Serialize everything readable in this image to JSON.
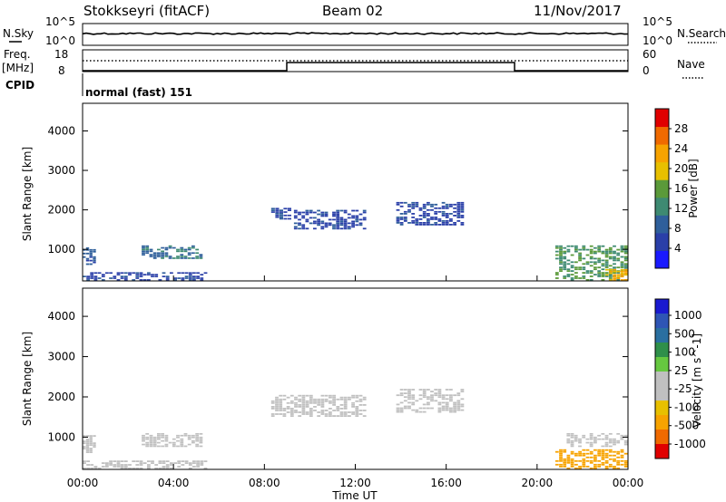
{
  "header": {
    "station": "Stokkseyri (fitACF)",
    "beam": "Beam 02",
    "date": "11/Nov/2017"
  },
  "noise_panel": {
    "left_label": "N.Sky",
    "right_label": "N.Search",
    "left_ticks": [
      "10^5",
      "10^0"
    ],
    "right_ticks": [
      "10^5",
      "10^0"
    ]
  },
  "freq_panel": {
    "left_label_line1": "Freq.",
    "left_label_line2": "[MHz]",
    "left_label_line3": "CPID",
    "left_ticks": [
      "18",
      "8"
    ],
    "right_label": "Nave",
    "right_ticks": [
      "60",
      "0"
    ],
    "cpid_text": "normal (fast) 151"
  },
  "colors": {
    "power": [
      "#1a1aff",
      "#2a3fa8",
      "#2f5f9b",
      "#3e8a72",
      "#5b9a3a",
      "#e8c000",
      "#f7a300",
      "#f06a00",
      "#e00000"
    ],
    "velocity": [
      "#e00000",
      "#f06a00",
      "#f7a300",
      "#e8c000",
      "#c0c0c0",
      "#c0c0c0",
      "#66c840",
      "#2f8f4a",
      "#2a6fa0",
      "#2e55b5",
      "#1a1ad0"
    ]
  },
  "chart_data": [
    {
      "type": "heatmap",
      "name": "power",
      "xlabel": "",
      "ylabel": "Slant Range [km]",
      "yticks": [
        "1000",
        "2000",
        "3000",
        "4000"
      ],
      "ylim": [
        200,
        4700
      ],
      "xlim": [
        0,
        24
      ],
      "colorbar_label": "Power [dB]",
      "colorbar_ticks": [
        "4",
        "8",
        "12",
        "16",
        "20",
        "24",
        "28"
      ],
      "color_range": [
        0,
        32
      ],
      "regions": [
        {
          "t0": 0.0,
          "t1": 0.6,
          "r0": 600,
          "r1": 1050,
          "v": 8
        },
        {
          "t0": 0.0,
          "t1": 5.5,
          "r0": 200,
          "r1": 420,
          "v": 6
        },
        {
          "t0": 2.6,
          "t1": 5.3,
          "r0": 750,
          "r1": 1100,
          "v": 10
        },
        {
          "t0": 8.3,
          "t1": 9.2,
          "r0": 1750,
          "r1": 2050,
          "v": 7
        },
        {
          "t0": 9.3,
          "t1": 12.5,
          "r0": 1500,
          "r1": 2000,
          "v": 6
        },
        {
          "t0": 13.8,
          "t1": 16.8,
          "r0": 1600,
          "r1": 2200,
          "v": 6
        },
        {
          "t0": 20.8,
          "t1": 24.0,
          "r0": 200,
          "r1": 1100,
          "v": 14
        },
        {
          "t0": 23.0,
          "t1": 24.0,
          "r0": 200,
          "r1": 500,
          "v": 22
        }
      ]
    },
    {
      "type": "heatmap",
      "name": "velocity",
      "xlabel": "Time UT",
      "ylabel": "Slant Range [km]",
      "xticks": [
        "00:00",
        "04:00",
        "08:00",
        "12:00",
        "16:00",
        "20:00",
        "00:00"
      ],
      "yticks": [
        "1000",
        "2000",
        "3000",
        "4000"
      ],
      "ylim": [
        200,
        4700
      ],
      "xlim": [
        0,
        24
      ],
      "colorbar_label": "Velocity [m s^-1]",
      "colorbar_ticks": [
        "1000",
        "500",
        "100",
        "25",
        "-25",
        "-100",
        "-500",
        "-1000"
      ],
      "regions": [
        {
          "t0": 0.0,
          "t1": 0.6,
          "r0": 600,
          "r1": 1050,
          "v": 0
        },
        {
          "t0": 0.0,
          "t1": 5.5,
          "r0": 200,
          "r1": 420,
          "v": 10
        },
        {
          "t0": 2.6,
          "t1": 5.3,
          "r0": 750,
          "r1": 1100,
          "v": 0
        },
        {
          "t0": 8.3,
          "t1": 12.5,
          "r0": 1500,
          "r1": 2050,
          "v": 0
        },
        {
          "t0": 13.8,
          "t1": 16.8,
          "r0": 1600,
          "r1": 2200,
          "v": 0
        },
        {
          "t0": 20.8,
          "t1": 24.0,
          "r0": 200,
          "r1": 700,
          "v": -250
        },
        {
          "t0": 21.3,
          "t1": 24.0,
          "r0": 750,
          "r1": 1100,
          "v": 0
        }
      ]
    }
  ]
}
